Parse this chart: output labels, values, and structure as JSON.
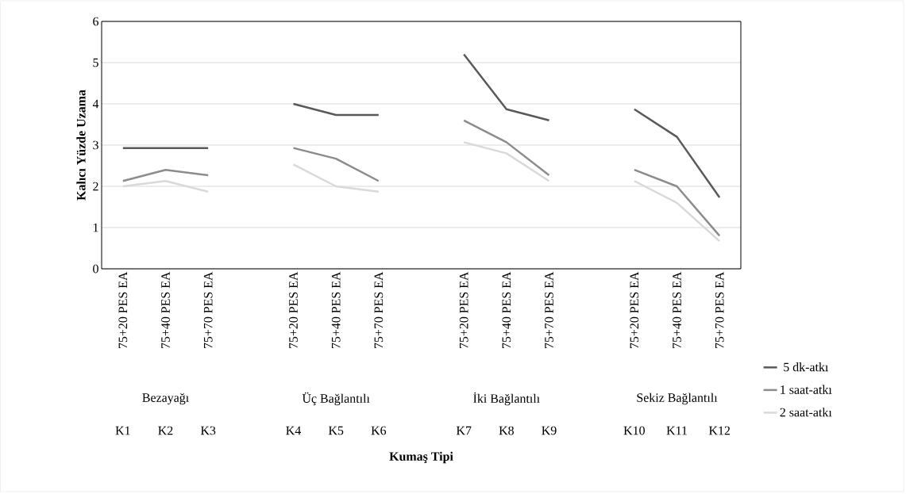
{
  "chart_data": {
    "type": "line",
    "ylabel": "Kalıcı Yüzde Uzama",
    "categories": [
      "75+20 PES EA",
      "75+40 PES EA",
      "75+70 PES EA",
      null,
      "75+20 PES EA",
      "75+40 PES EA",
      "75+70 PES EA",
      null,
      "75+20 PES EA",
      "75+40 PES EA",
      "75+70 PES EA",
      null,
      "75+20 PES EA",
      "75+40 PES EA",
      "75+70 PES EA"
    ],
    "series": [
      {
        "name": "5 dk-atkı",
        "color": "#595959",
        "values": [
          2.93,
          2.93,
          2.93,
          null,
          4.0,
          3.73,
          3.73,
          null,
          5.2,
          3.87,
          3.6,
          null,
          3.87,
          3.2,
          1.73
        ]
      },
      {
        "name": "1 saat-atkı",
        "color": "#8c8c8c",
        "values": [
          2.13,
          2.4,
          2.27,
          null,
          2.93,
          2.67,
          2.13,
          null,
          3.6,
          3.07,
          2.27,
          null,
          2.4,
          2.0,
          0.8
        ]
      },
      {
        "name": "2 saat-atkı",
        "color": "#d9d9d9",
        "values": [
          2.0,
          2.13,
          1.87,
          null,
          2.53,
          2.0,
          1.87,
          null,
          3.07,
          2.8,
          2.13,
          null,
          2.13,
          1.6,
          0.67
        ]
      }
    ],
    "annotations": [
      "Bezayağı",
      "Üç Bağlantılı",
      "İki Bağlantılı",
      "Sekiz Bağlantılı",
      "K1",
      "K2",
      "K3",
      "K4",
      "K5",
      "K6",
      "K7",
      "K8",
      "K9",
      "K10",
      "K11",
      "K12",
      "**Kumaş Tipi**"
    ],
    "ylim": [
      0,
      6
    ],
    "yticks": [
      0,
      1,
      2,
      3,
      4,
      5,
      6
    ],
    "grid": "y",
    "legend": "right",
    "marker": "none",
    "line_style": "solid"
  }
}
